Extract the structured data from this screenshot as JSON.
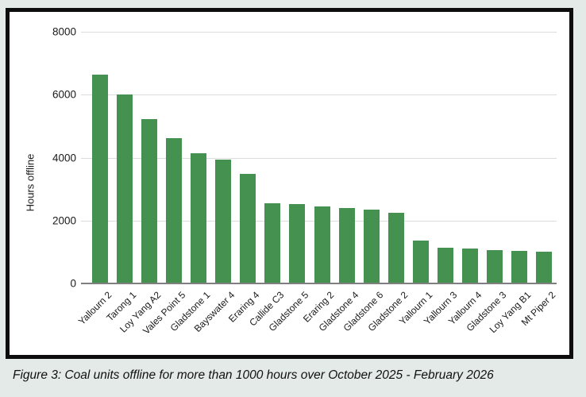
{
  "figure": {
    "caption": "Figure 3: Coal units offline for more than 1000 hours over October 2025 - February 2026"
  },
  "chart_data": {
    "type": "bar",
    "title": "",
    "xlabel": "",
    "ylabel": "Hours offline",
    "ylim": [
      0,
      8000
    ],
    "yticks": [
      0,
      2000,
      4000,
      6000,
      8000
    ],
    "grid": true,
    "legend": "none",
    "categories": [
      "Yallourn 2",
      "Tarong 1",
      "Loy Yang A2",
      "Vales Point 5",
      "Gladstone 1",
      "Bayswater 4",
      "Eraring 4",
      "Callide C3",
      "Gladstone 5",
      "Eraring 2",
      "Gladstone 4",
      "Gladstone 6",
      "Gladstone 2",
      "Yallourn 1",
      "Yallourn 3",
      "Yallourn 4",
      "Gladstone 3",
      "Loy Yang B1",
      "Mt Piper 2"
    ],
    "values": [
      6650,
      6000,
      5220,
      4610,
      4130,
      3930,
      3490,
      2540,
      2530,
      2450,
      2390,
      2350,
      2240,
      1370,
      1130,
      1110,
      1050,
      1040,
      1010
    ]
  },
  "colors": {
    "bar": "#45914F",
    "background": "#e3eae8",
    "gridline": "#dcdcdc",
    "axis_line": "#7f7f7f",
    "frame_border": "#0d0d0d"
  }
}
